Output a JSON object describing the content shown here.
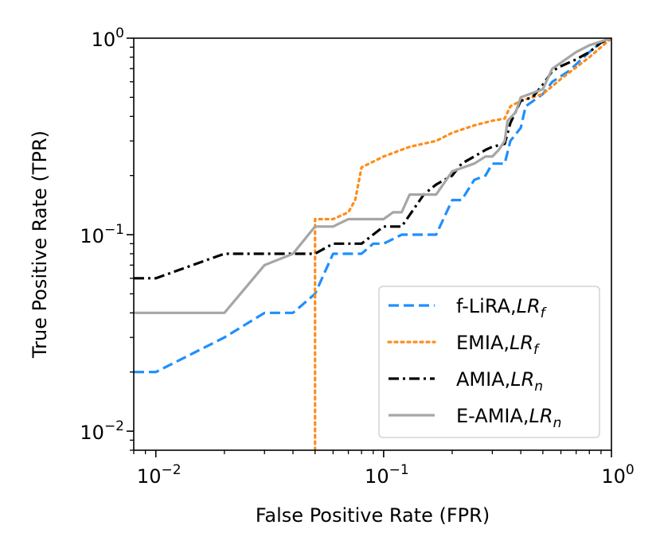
{
  "chart_data": {
    "type": "line",
    "title": "",
    "xlabel": "False Positive Rate (FPR)",
    "ylabel": "True Positive Rate (TPR)",
    "xscale": "log",
    "yscale": "log",
    "xlim": [
      0.008,
      1
    ],
    "ylim": [
      0.008,
      1
    ],
    "x_ticks": [
      {
        "value": 0.01,
        "base": "10",
        "exp": "−2"
      },
      {
        "value": 0.1,
        "base": "10",
        "exp": "−1"
      },
      {
        "value": 1,
        "base": "10",
        "exp": "0"
      }
    ],
    "y_ticks": [
      {
        "value": 0.01,
        "base": "10",
        "exp": "−2"
      },
      {
        "value": 0.1,
        "base": "10",
        "exp": "−1"
      },
      {
        "value": 1,
        "base": "10",
        "exp": "0"
      }
    ],
    "legend_position": "bottom-right",
    "series": [
      {
        "name": "f-LiRA,",
        "name_math": "LR",
        "name_sub": "f",
        "color": "#1e8fff",
        "style": "dashed",
        "points": [
          [
            0.008,
            0.02
          ],
          [
            0.01,
            0.02
          ],
          [
            0.02,
            0.03
          ],
          [
            0.03,
            0.04
          ],
          [
            0.04,
            0.04
          ],
          [
            0.05,
            0.05
          ],
          [
            0.06,
            0.08
          ],
          [
            0.08,
            0.08
          ],
          [
            0.09,
            0.09
          ],
          [
            0.1,
            0.09
          ],
          [
            0.12,
            0.1
          ],
          [
            0.17,
            0.1
          ],
          [
            0.2,
            0.15
          ],
          [
            0.22,
            0.15
          ],
          [
            0.25,
            0.19
          ],
          [
            0.28,
            0.2
          ],
          [
            0.3,
            0.23
          ],
          [
            0.34,
            0.23
          ],
          [
            0.36,
            0.3
          ],
          [
            0.4,
            0.35
          ],
          [
            0.42,
            0.45
          ],
          [
            0.5,
            0.52
          ],
          [
            0.55,
            0.6
          ],
          [
            0.65,
            0.68
          ],
          [
            0.8,
            0.85
          ],
          [
            0.9,
            0.95
          ],
          [
            1,
            1
          ]
        ]
      },
      {
        "name": "EMIA,",
        "name_math": "LR",
        "name_sub": "f",
        "color": "#ff8c1a",
        "style": "dotted",
        "points": [
          [
            0.05,
            0.008
          ],
          [
            0.05,
            0.12
          ],
          [
            0.06,
            0.12
          ],
          [
            0.07,
            0.13
          ],
          [
            0.075,
            0.15
          ],
          [
            0.08,
            0.22
          ],
          [
            0.1,
            0.25
          ],
          [
            0.13,
            0.28
          ],
          [
            0.17,
            0.3
          ],
          [
            0.2,
            0.33
          ],
          [
            0.25,
            0.36
          ],
          [
            0.3,
            0.38
          ],
          [
            0.34,
            0.39
          ],
          [
            0.36,
            0.45
          ],
          [
            0.4,
            0.48
          ],
          [
            0.5,
            0.52
          ],
          [
            0.6,
            0.62
          ],
          [
            0.8,
            0.8
          ],
          [
            1,
            1
          ]
        ]
      },
      {
        "name": "AMIA,",
        "name_math": "LR",
        "name_sub": "n",
        "color": "#000000",
        "style": "dashdot",
        "points": [
          [
            0.008,
            0.06
          ],
          [
            0.01,
            0.06
          ],
          [
            0.02,
            0.08
          ],
          [
            0.03,
            0.08
          ],
          [
            0.05,
            0.08
          ],
          [
            0.06,
            0.09
          ],
          [
            0.08,
            0.09
          ],
          [
            0.1,
            0.11
          ],
          [
            0.12,
            0.11
          ],
          [
            0.15,
            0.16
          ],
          [
            0.17,
            0.18
          ],
          [
            0.2,
            0.2
          ],
          [
            0.22,
            0.23
          ],
          [
            0.25,
            0.25
          ],
          [
            0.28,
            0.27
          ],
          [
            0.3,
            0.28
          ],
          [
            0.34,
            0.29
          ],
          [
            0.36,
            0.37
          ],
          [
            0.4,
            0.48
          ],
          [
            0.45,
            0.5
          ],
          [
            0.5,
            0.58
          ],
          [
            0.55,
            0.68
          ],
          [
            0.6,
            0.72
          ],
          [
            0.7,
            0.78
          ],
          [
            0.8,
            0.85
          ],
          [
            0.9,
            0.95
          ],
          [
            1,
            1
          ]
        ]
      },
      {
        "name": "E-AMIA,",
        "name_math": "LR",
        "name_sub": "n",
        "color": "#a6a6a6",
        "style": "solid",
        "points": [
          [
            0.008,
            0.04
          ],
          [
            0.02,
            0.04
          ],
          [
            0.03,
            0.07
          ],
          [
            0.04,
            0.08
          ],
          [
            0.05,
            0.11
          ],
          [
            0.06,
            0.11
          ],
          [
            0.07,
            0.12
          ],
          [
            0.1,
            0.12
          ],
          [
            0.11,
            0.13
          ],
          [
            0.12,
            0.13
          ],
          [
            0.13,
            0.16
          ],
          [
            0.17,
            0.16
          ],
          [
            0.2,
            0.21
          ],
          [
            0.25,
            0.23
          ],
          [
            0.28,
            0.25
          ],
          [
            0.3,
            0.25
          ],
          [
            0.32,
            0.27
          ],
          [
            0.34,
            0.3
          ],
          [
            0.35,
            0.38
          ],
          [
            0.38,
            0.42
          ],
          [
            0.4,
            0.5
          ],
          [
            0.5,
            0.55
          ],
          [
            0.55,
            0.7
          ],
          [
            0.6,
            0.75
          ],
          [
            0.7,
            0.85
          ],
          [
            0.8,
            0.92
          ],
          [
            1,
            1
          ]
        ]
      }
    ]
  }
}
